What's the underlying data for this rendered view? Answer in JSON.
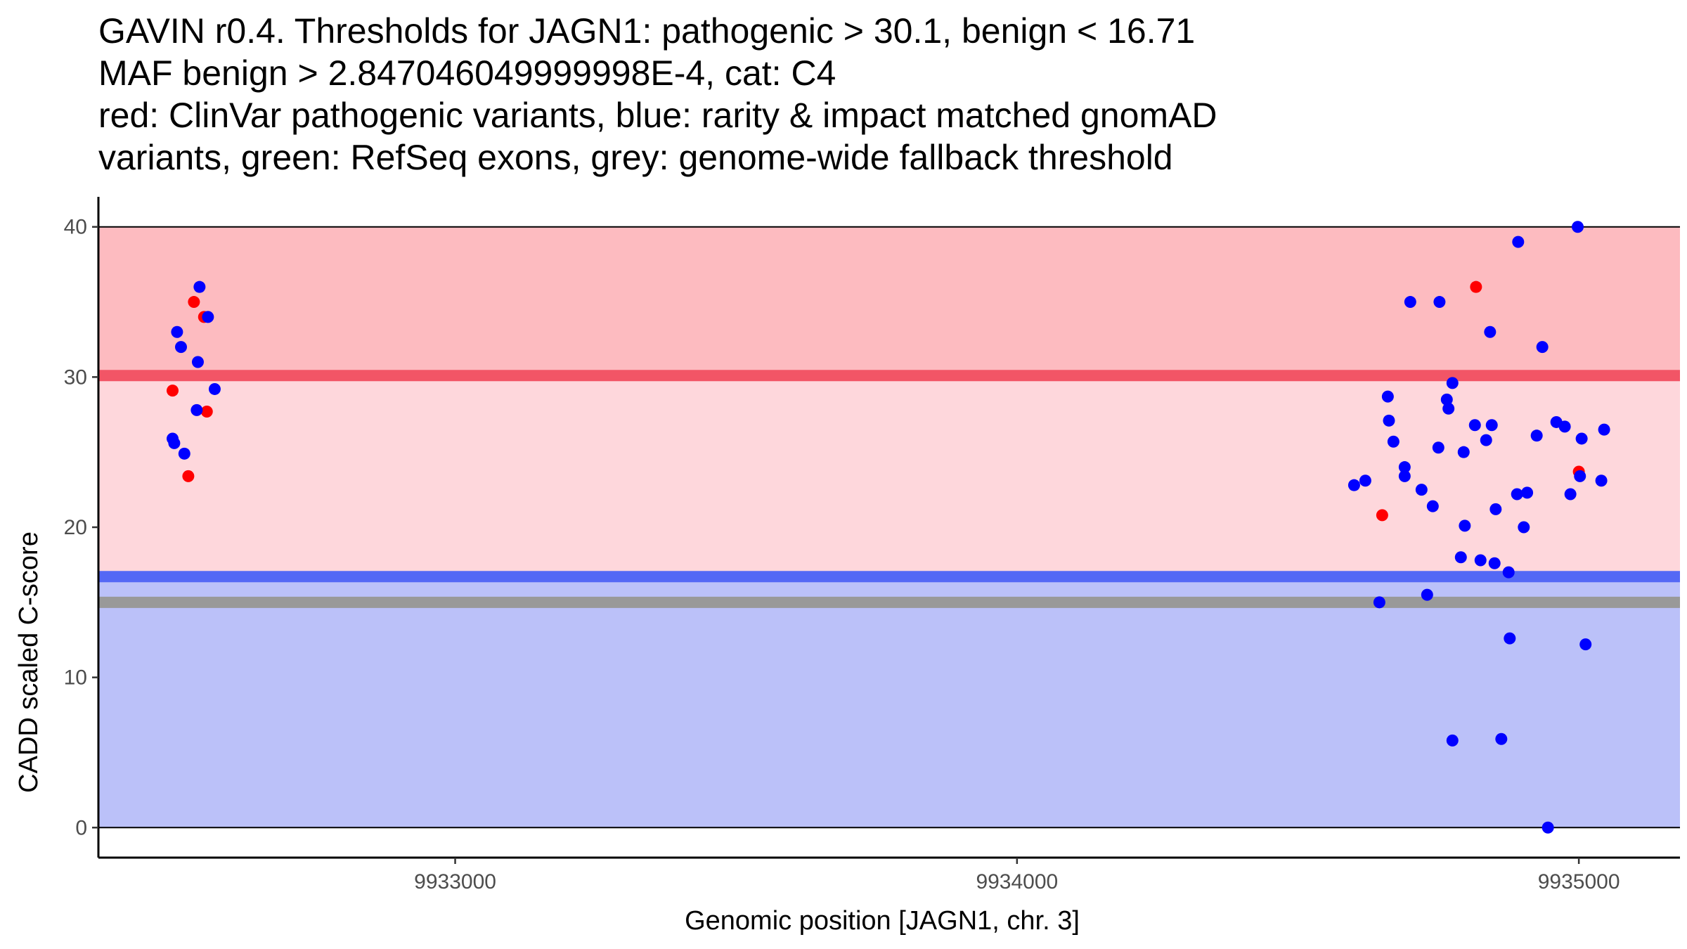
{
  "title_lines": [
    "GAVIN r0.4. Thresholds for JAGN1: pathogenic > 30.1, benign < 16.71",
    "MAF benign > 2.847046049999998E-4, cat: C4",
    "red: ClinVar pathogenic variants, blue: rarity & impact matched gnomAD",
    "variants, green: RefSeq exons, grey: genome-wide fallback threshold"
  ],
  "chart_data": {
    "type": "scatter",
    "xlabel": "Genomic position [JAGN1, chr. 3]",
    "ylabel": "CADD scaled C-score",
    "xlim": [
      9932365,
      9935180
    ],
    "ylim": [
      -2,
      42
    ],
    "x_ticks": [
      {
        "value": 9933000,
        "label": "9933000"
      },
      {
        "value": 9934000,
        "label": "9934000"
      },
      {
        "value": 9935000,
        "label": "9935000"
      }
    ],
    "y_ticks": [
      {
        "value": 0,
        "label": "0"
      },
      {
        "value": 10,
        "label": "10"
      },
      {
        "value": 20,
        "label": "20"
      },
      {
        "value": 30,
        "label": "30"
      },
      {
        "value": 40,
        "label": "40"
      }
    ],
    "x_span": [
      9932365,
      9935180
    ],
    "regions": [
      {
        "name": "pathogenic-region",
        "y0": 30.1,
        "y1": 40,
        "color": "#fdbbc0"
      },
      {
        "name": "gray-zone",
        "y0": 16.71,
        "y1": 30.1,
        "color": "#fed7dc"
      },
      {
        "name": "benign-region",
        "y0": 0,
        "y1": 16.71,
        "color": "#bbc1f9"
      }
    ],
    "thresholds": [
      {
        "name": "pathogenic-threshold",
        "value": 30.1,
        "color": "#f25566"
      },
      {
        "name": "benign-threshold",
        "value": 16.71,
        "color": "#5468f5"
      },
      {
        "name": "fallback-threshold",
        "value": 15,
        "color": "#999999"
      }
    ],
    "series": [
      {
        "name": "ClinVar pathogenic",
        "color": "#ff0000",
        "points": [
          [
            9932497,
            29.1
          ],
          [
            9932525,
            23.4
          ],
          [
            9932535,
            35.0
          ],
          [
            9932553,
            34.0
          ],
          [
            9932558,
            27.7
          ],
          [
            9934650,
            20.8
          ],
          [
            9934817,
            36.0
          ],
          [
            9935000,
            23.7
          ]
        ]
      },
      {
        "name": "gnomAD matched",
        "color": "#0000ff",
        "points": [
          [
            9932497,
            25.9
          ],
          [
            9932500,
            25.6
          ],
          [
            9932505,
            33.0
          ],
          [
            9932512,
            32.0
          ],
          [
            9932518,
            24.9
          ],
          [
            9932540,
            27.8
          ],
          [
            9932542,
            31.0
          ],
          [
            9932545,
            36.0
          ],
          [
            9932560,
            34.0
          ],
          [
            9932572,
            29.2
          ],
          [
            9934600,
            22.8
          ],
          [
            9934620,
            23.1
          ],
          [
            9934645,
            15.0
          ],
          [
            9934660,
            28.7
          ],
          [
            9934662,
            27.1
          ],
          [
            9934670,
            25.7
          ],
          [
            9934690,
            24.0
          ],
          [
            9934690,
            23.4
          ],
          [
            9934700,
            35.0
          ],
          [
            9934720,
            22.5
          ],
          [
            9934730,
            15.5
          ],
          [
            9934740,
            21.4
          ],
          [
            9934750,
            25.3
          ],
          [
            9934752,
            35.0
          ],
          [
            9934765,
            28.5
          ],
          [
            9934768,
            27.9
          ],
          [
            9934775,
            29.6
          ],
          [
            9934775,
            5.8
          ],
          [
            9934790,
            18.0
          ],
          [
            9934795,
            25.0
          ],
          [
            9934797,
            20.1
          ],
          [
            9934815,
            26.8
          ],
          [
            9934825,
            17.8
          ],
          [
            9934835,
            25.8
          ],
          [
            9934842,
            33.0
          ],
          [
            9934845,
            26.8
          ],
          [
            9934850,
            17.6
          ],
          [
            9934852,
            21.2
          ],
          [
            9934862,
            5.9
          ],
          [
            9934875,
            17.0
          ],
          [
            9934877,
            12.6
          ],
          [
            9934890,
            22.2
          ],
          [
            9934892,
            39.0
          ],
          [
            9934902,
            20.0
          ],
          [
            9934908,
            22.3
          ],
          [
            9934925,
            26.1
          ],
          [
            9934935,
            32.0
          ],
          [
            9934945,
            0.0
          ],
          [
            9934960,
            27.0
          ],
          [
            9934975,
            26.7
          ],
          [
            9934985,
            22.2
          ],
          [
            9934998,
            40.0
          ],
          [
            9935002,
            23.4
          ],
          [
            9935005,
            25.9
          ],
          [
            9935012,
            12.2
          ],
          [
            9935040,
            23.1
          ],
          [
            9935045,
            26.5
          ]
        ]
      }
    ]
  }
}
